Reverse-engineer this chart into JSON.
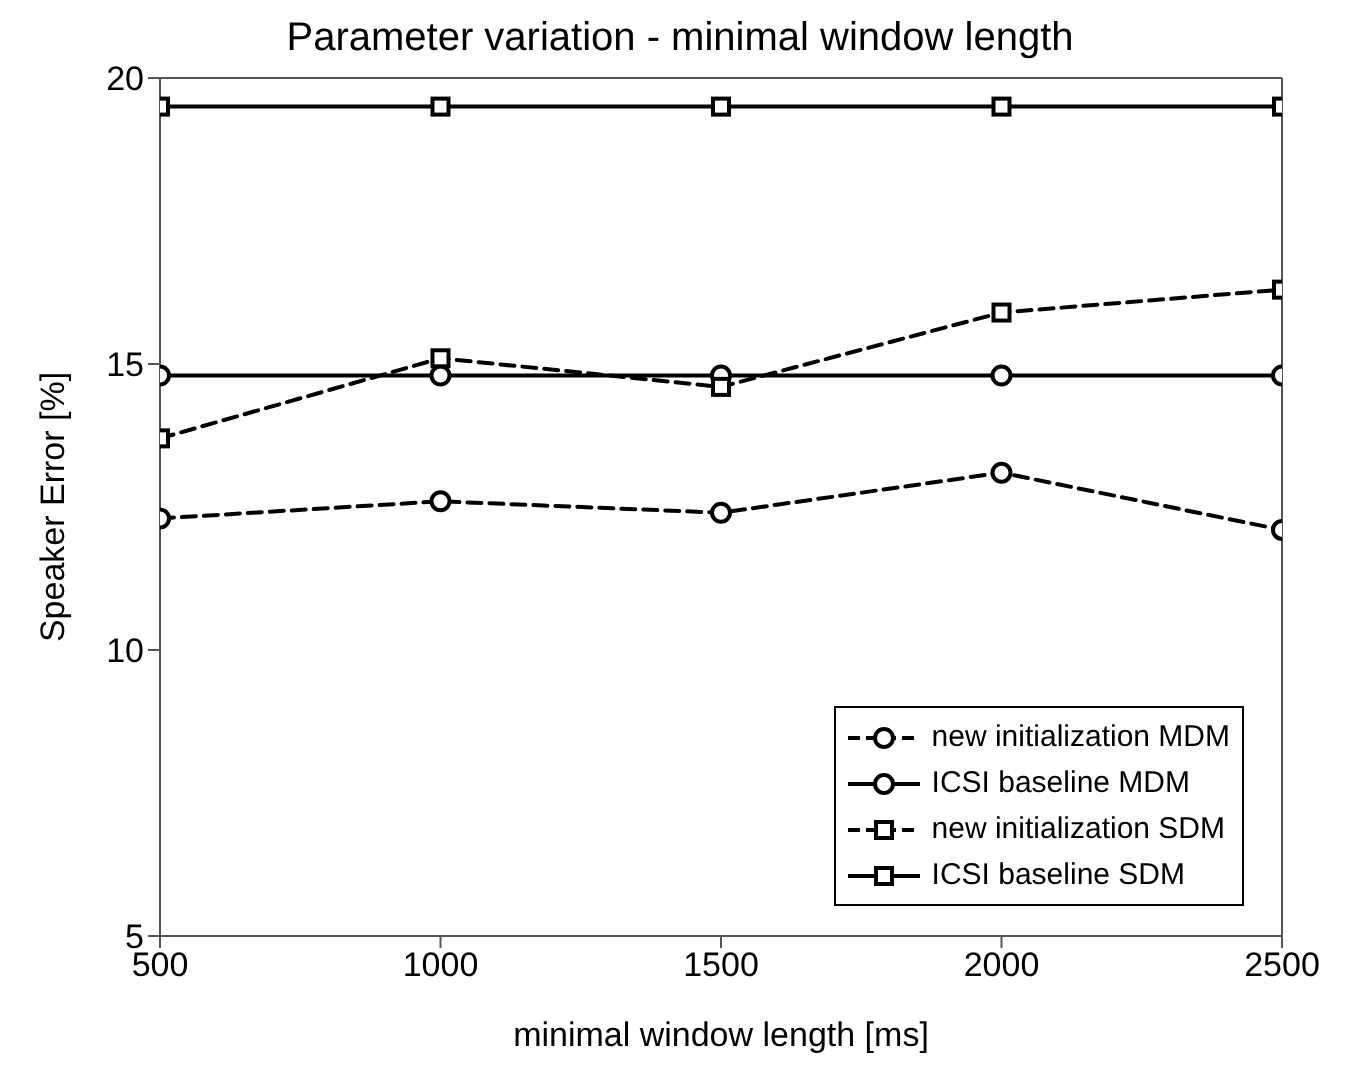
{
  "chart_data": {
    "type": "line",
    "title": "Parameter variation - minimal window length",
    "xlabel": "minimal window length [ms]",
    "ylabel": "Speaker Error [%]",
    "x": [
      500,
      1000,
      1500,
      2000,
      2500
    ],
    "series": [
      {
        "name": "new initialization MDM",
        "color": "#000000",
        "marker": "circle",
        "line_style": "dashed",
        "values": [
          12.3,
          12.6,
          12.4,
          13.1,
          12.1
        ]
      },
      {
        "name": "ICSI baseline MDM",
        "color": "#000000",
        "marker": "circle",
        "line_style": "solid",
        "values": [
          14.8,
          14.8,
          14.8,
          14.8,
          14.8
        ]
      },
      {
        "name": "new initialization SDM",
        "color": "#000000",
        "marker": "square",
        "line_style": "dashed",
        "values": [
          13.7,
          15.1,
          14.6,
          15.9,
          16.3
        ]
      },
      {
        "name": "ICSI baseline SDM",
        "color": "#000000",
        "marker": "square",
        "line_style": "solid",
        "values": [
          19.5,
          19.5,
          19.5,
          19.5,
          19.5
        ]
      }
    ],
    "xlim": [
      500,
      2500
    ],
    "xticks": [
      500,
      1000,
      1500,
      2000,
      2500
    ],
    "ylim": [
      5,
      20
    ],
    "yticks": [
      5,
      10,
      15,
      20
    ],
    "grid": false,
    "legend": "bottom right"
  }
}
